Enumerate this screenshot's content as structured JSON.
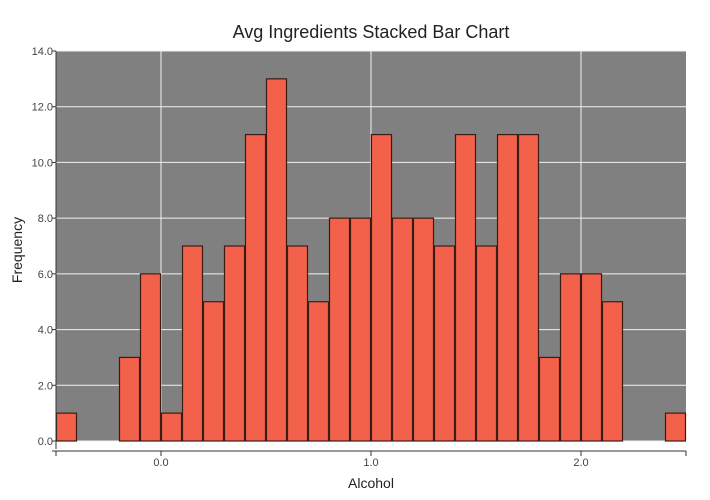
{
  "chart_data": {
    "type": "bar",
    "title": "Avg Ingredients Stacked Bar Chart",
    "xlabel": "Alcohol",
    "ylabel": "Frequency",
    "xlim": [
      -0.5,
      2.5
    ],
    "ylim": [
      0,
      14
    ],
    "bin_width": 0.1,
    "grid": true,
    "x_ticks": [
      0.0,
      1.0,
      2.0
    ],
    "x_tick_labels": [
      "0.0",
      "1.0",
      "2.0"
    ],
    "y_ticks": [
      0,
      2,
      4,
      6,
      8,
      10,
      12,
      14
    ],
    "y_tick_labels": [
      "0.0",
      "2.0",
      "4.0",
      "6.0",
      "8.0",
      "10.0",
      "12.0",
      "14.0"
    ],
    "bins": [
      {
        "x": -0.45,
        "value": 1
      },
      {
        "x": -0.15,
        "value": 3
      },
      {
        "x": -0.05,
        "value": 6
      },
      {
        "x": 0.05,
        "value": 1
      },
      {
        "x": 0.15,
        "value": 7
      },
      {
        "x": 0.25,
        "value": 5
      },
      {
        "x": 0.35,
        "value": 7
      },
      {
        "x": 0.45,
        "value": 11
      },
      {
        "x": 0.55,
        "value": 13
      },
      {
        "x": 0.65,
        "value": 7
      },
      {
        "x": 0.75,
        "value": 5
      },
      {
        "x": 0.85,
        "value": 8
      },
      {
        "x": 0.95,
        "value": 8
      },
      {
        "x": 1.05,
        "value": 11
      },
      {
        "x": 1.15,
        "value": 8
      },
      {
        "x": 1.25,
        "value": 8
      },
      {
        "x": 1.35,
        "value": 7
      },
      {
        "x": 1.45,
        "value": 11
      },
      {
        "x": 1.55,
        "value": 7
      },
      {
        "x": 1.65,
        "value": 11
      },
      {
        "x": 1.75,
        "value": 11
      },
      {
        "x": 1.85,
        "value": 3
      },
      {
        "x": 1.95,
        "value": 6
      },
      {
        "x": 2.05,
        "value": 6
      },
      {
        "x": 2.15,
        "value": 5
      },
      {
        "x": 2.45,
        "value": 1
      }
    ],
    "colors": {
      "bar_fill": "#f4614a",
      "bar_stroke": "#3a1c16",
      "plot_background": "#808080",
      "grid": "#f2f2f2"
    }
  }
}
